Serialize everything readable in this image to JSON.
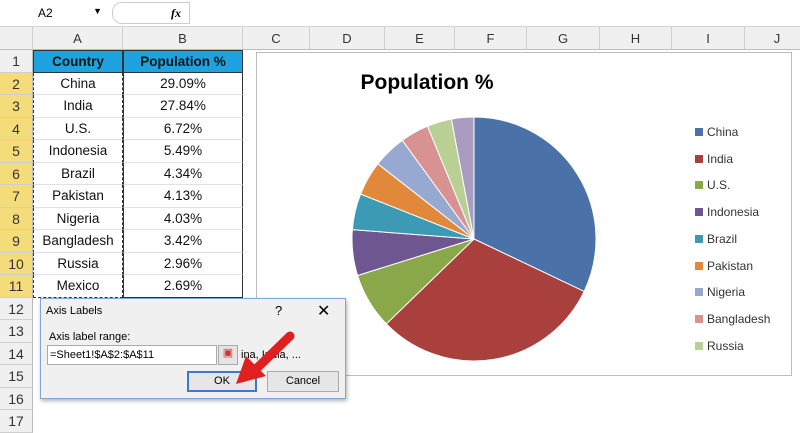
{
  "formula_bar": {
    "name_box": "A2",
    "fx": "fx"
  },
  "columns": [
    "A",
    "B",
    "C",
    "D",
    "E",
    "F",
    "G",
    "H",
    "I",
    "J"
  ],
  "rows": [
    "1",
    "2",
    "3",
    "4",
    "5",
    "6",
    "7",
    "8",
    "9",
    "10",
    "11",
    "12",
    "13",
    "14",
    "15",
    "16",
    "17"
  ],
  "table": {
    "headers": [
      "Country",
      "Population %"
    ],
    "rows": [
      [
        "China",
        "29.09%"
      ],
      [
        "India",
        "27.84%"
      ],
      [
        "U.S.",
        "6.72%"
      ],
      [
        "Indonesia",
        "5.49%"
      ],
      [
        "Brazil",
        "4.34%"
      ],
      [
        "Pakistan",
        "4.13%"
      ],
      [
        "Nigeria",
        "4.03%"
      ],
      [
        "Bangladesh",
        "3.42%"
      ],
      [
        "Russia",
        "2.96%"
      ],
      [
        "Mexico",
        "2.69%"
      ]
    ]
  },
  "chart_data": {
    "type": "pie",
    "title": "Population %",
    "categories": [
      "China",
      "India",
      "U.S.",
      "Indonesia",
      "Brazil",
      "Pakistan",
      "Nigeria",
      "Bangladesh",
      "Russia",
      "Mexico"
    ],
    "values": [
      29.09,
      27.84,
      6.72,
      5.49,
      4.34,
      4.13,
      4.03,
      3.42,
      2.96,
      2.69
    ],
    "colors": [
      "#4a72a8",
      "#a9403d",
      "#8aa84a",
      "#6e5690",
      "#3c9ab5",
      "#e2883a",
      "#97a9d1",
      "#d89292",
      "#b9cf94",
      "#a99cc0"
    ],
    "legend_position": "right",
    "legend_visible_entries": 9
  },
  "dialog": {
    "title": "Axis Labels",
    "help": "?",
    "close": "✕",
    "label": "Axis label range:",
    "range_value": "=Sheet1!$A$2:$A$11",
    "preview": "ina, India, ...",
    "ok": "OK",
    "cancel": "Cancel"
  }
}
